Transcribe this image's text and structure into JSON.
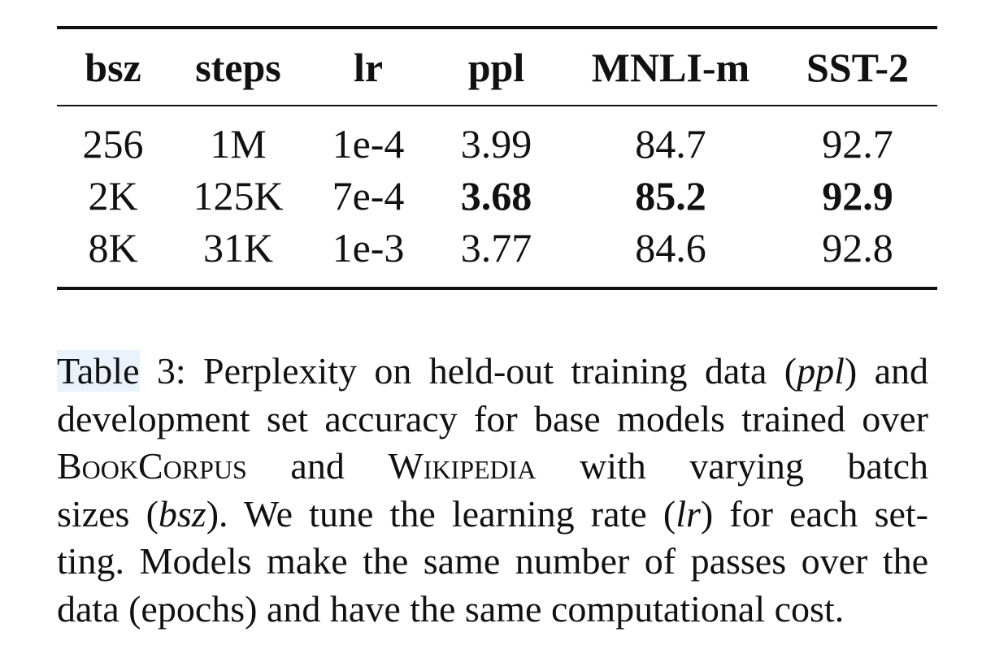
{
  "table": {
    "headers": [
      "bsz",
      "steps",
      "lr",
      "ppl",
      "MNLI-m",
      "SST-2"
    ],
    "rows": [
      [
        "256",
        "1M",
        "1e-4",
        "3.99",
        "84.7",
        "92.7"
      ],
      [
        "2K",
        "125K",
        "7e-4",
        "3.68",
        "85.2",
        "92.9"
      ],
      [
        "8K",
        "31K",
        "1e-3",
        "3.77",
        "84.6",
        "92.8"
      ]
    ],
    "bold_cells": [
      "r1c3",
      "r1c4",
      "r1c5"
    ]
  },
  "caption": {
    "label": "Table",
    "l1_a": " 3: Perplexity on held-out training data (",
    "l1_em": "ppl",
    "l1_b": ") and",
    "l2": "development set accuracy for base models trained over",
    "l3_sc1": "BookCorpus",
    "l3_mid": " and ",
    "l3_sc2": "Wikipedia",
    "l3_end": " with varying batch",
    "l4_a": "sizes (",
    "l4_em1": "bsz",
    "l4_b": "). We tune the learning rate (",
    "l4_em2": "lr",
    "l4_c": ") for each set-",
    "l5": "ting. Models make the same number of passes over the",
    "l6": "data (epochs) and have the same computational cost."
  }
}
